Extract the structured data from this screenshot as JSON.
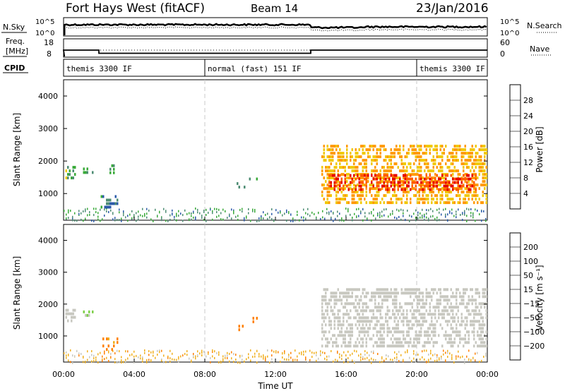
{
  "header": {
    "station": "Fort Hays West (fitACF)",
    "beam": "Beam 14",
    "date": "23/Jan/2016"
  },
  "strip": {
    "nsky_label": "N.Sky",
    "nsearch_label": "N.Search",
    "noise_ticks": [
      "10^5",
      "10^0"
    ],
    "freq_label_line1": "Freq.",
    "freq_label_line2": "[MHz]",
    "freq_ticks": [
      "18",
      "8"
    ],
    "nave_label": "Nave",
    "nave_ticks": [
      "60",
      "0"
    ],
    "cpid_label": "CPID",
    "cpid_segments": [
      {
        "start": 0,
        "end": 8,
        "label": "themis 3300 IF"
      },
      {
        "start": 8,
        "end": 20,
        "label": "normal (fast) 151 IF"
      },
      {
        "start": 20,
        "end": 24,
        "label": "themis 3300 IF"
      }
    ],
    "freq_steps": [
      {
        "start": 0,
        "end": 2,
        "mhz": 13
      },
      {
        "start": 2,
        "end": 14,
        "mhz": 10.5
      },
      {
        "start": 14,
        "end": 24,
        "mhz": 13
      }
    ]
  },
  "panels": {
    "ylabel": "Slant Range [km]",
    "yticks": [
      "4000",
      "3000",
      "2000",
      "1000"
    ],
    "xticks": [
      "00:00",
      "04:00",
      "08:00",
      "12:00",
      "16:00",
      "20:00",
      "00:00"
    ],
    "xlabel": "Time UT"
  },
  "power_scale": {
    "label": "Power [dB]",
    "ticks": [
      "28",
      "24",
      "20",
      "16",
      "12",
      "8",
      "4"
    ],
    "colors": [
      "#e60000",
      "#ff5a00",
      "#ff9900",
      "#f0c800",
      "#39aa39",
      "#4d8c73",
      "#2a5aa8",
      "#0000ff"
    ]
  },
  "velocity_scale": {
    "label": "Velocity [m s⁻¹]",
    "ticks": [
      "200",
      "100",
      "50",
      "15",
      "−15",
      "−50",
      "−100",
      "−200"
    ],
    "colors": [
      "#1a1aaa",
      "#2a5aa8",
      "#3a9a3a",
      "#7ed04a",
      "#c8c8c0",
      "#f0b020",
      "#ff8000",
      "#ff3c00",
      "#e60000"
    ]
  },
  "chart_data": {
    "type": "heatmap",
    "x_range_hours": [
      0,
      24
    ],
    "y_range_km": [
      180,
      4500
    ],
    "power_range_db": [
      0,
      30
    ],
    "velocity_range_ms": [
      -250,
      250
    ],
    "power_panel": {
      "ground_band": {
        "x": [
          0,
          24
        ],
        "y": [
          180,
          400
        ]
      },
      "features": [
        {
          "x": [
            0.1,
            0.7
          ],
          "y": [
            1500,
            1850
          ],
          "db": 12
        },
        {
          "x": [
            1.1,
            1.7
          ],
          "y": [
            1600,
            1800
          ],
          "db": 10
        },
        {
          "x": [
            2.1,
            3.1
          ],
          "y": [
            600,
            950
          ],
          "db": 7
        },
        {
          "x": [
            2.6,
            2.9
          ],
          "y": [
            1600,
            1900
          ],
          "db": 10
        },
        {
          "x": [
            9.8,
            10.3
          ],
          "y": [
            1200,
            1350
          ],
          "db": 8
        },
        {
          "x": [
            10.5,
            11.0
          ],
          "y": [
            1450,
            1600
          ],
          "db": 9
        },
        {
          "x": [
            14.6,
            24.0
          ],
          "y": [
            700,
            2500
          ],
          "db": 18
        },
        {
          "x": [
            15.0,
            23.4
          ],
          "y": [
            1100,
            1600
          ],
          "db": 26
        }
      ]
    },
    "velocity_panel": {
      "ground_band": {
        "x": [
          0,
          24
        ],
        "y": [
          180,
          400
        ],
        "ms": -30
      },
      "features": [
        {
          "x": [
            0.1,
            0.7
          ],
          "y": [
            1500,
            1850
          ],
          "ms": 0
        },
        {
          "x": [
            1.1,
            1.7
          ],
          "y": [
            1600,
            1800
          ],
          "ms": 10
        },
        {
          "x": [
            2.1,
            3.1
          ],
          "y": [
            600,
            950
          ],
          "ms": -60
        },
        {
          "x": [
            9.8,
            10.3
          ],
          "y": [
            1200,
            1350
          ],
          "ms": -80
        },
        {
          "x": [
            10.5,
            11.0
          ],
          "y": [
            1450,
            1600
          ],
          "ms": -70
        },
        {
          "x": [
            14.6,
            24.0
          ],
          "y": [
            700,
            2500
          ],
          "ms": 0
        }
      ]
    }
  }
}
